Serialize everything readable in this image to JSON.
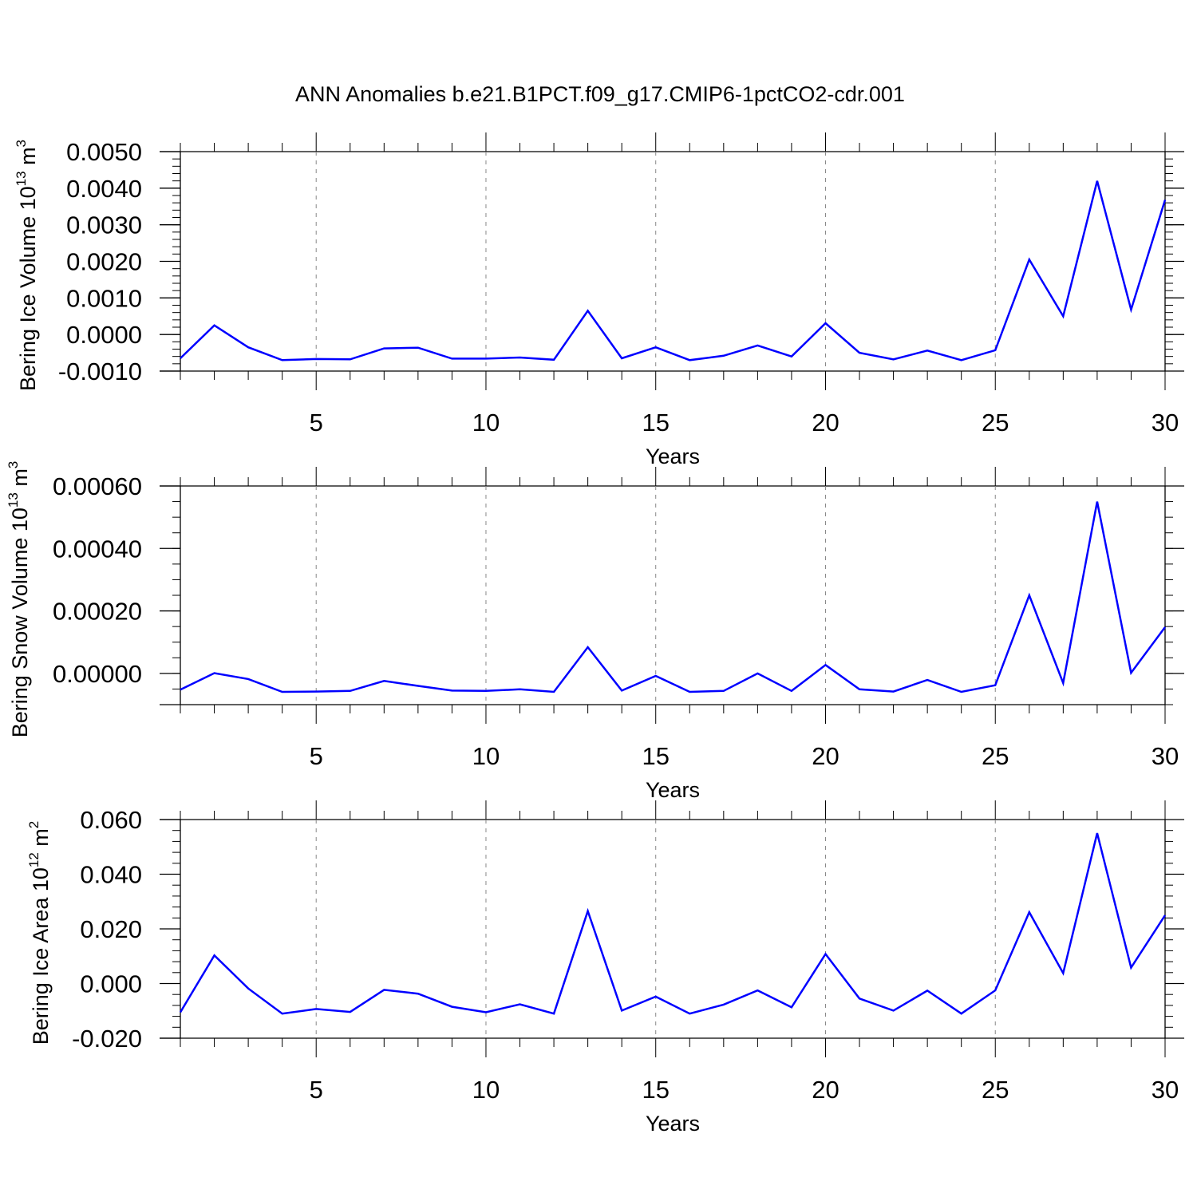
{
  "title": "ANN Anomalies b.e21.B1PCT.f09_g17.CMIP6-1pctCO2-cdr.001",
  "colors": {
    "line": "#0000ff",
    "axis": "#000000",
    "grid": "#888888",
    "background": "#ffffff"
  },
  "chart_data": [
    {
      "type": "line",
      "ylabel": "Bering Ice Volume 10",
      "ylabel_sup": "13",
      "ylabel_unit": " m",
      "ylabel_unit_sup": "3",
      "xlabel": "Years",
      "xlim": [
        1,
        30
      ],
      "ylim": [
        -0.001,
        0.005
      ],
      "x_ticks": [
        5,
        10,
        15,
        20,
        25,
        30
      ],
      "x_tick_labels": [
        "5",
        "10",
        "15",
        "20",
        "25",
        "30"
      ],
      "y_ticks": [
        -0.001,
        0.0,
        0.001,
        0.002,
        0.003,
        0.004,
        0.005
      ],
      "y_tick_labels": [
        "-0.0010",
        "0.0000",
        "0.0010",
        "0.0020",
        "0.0030",
        "0.0040",
        "0.0050"
      ],
      "y_minor_step": 0.0002,
      "grid": "x-dashed",
      "x": [
        1,
        2,
        3,
        4,
        5,
        6,
        7,
        8,
        9,
        10,
        11,
        12,
        13,
        14,
        15,
        16,
        17,
        18,
        19,
        20,
        21,
        22,
        23,
        24,
        25,
        26,
        27,
        28,
        29,
        30
      ],
      "values": [
        -0.00065,
        0.00025,
        -0.00035,
        -0.0007,
        -0.00067,
        -0.00068,
        -0.00038,
        -0.00036,
        -0.00066,
        -0.00066,
        -0.00063,
        -0.00069,
        0.00065,
        -0.00065,
        -0.00035,
        -0.0007,
        -0.00058,
        -0.0003,
        -0.0006,
        0.00031,
        -0.0005,
        -0.00068,
        -0.00044,
        -0.0007,
        -0.00043,
        0.00205,
        0.0005,
        0.0042,
        0.00068,
        0.00368
      ]
    },
    {
      "type": "line",
      "ylabel": "Bering Snow Volume 10",
      "ylabel_sup": "13",
      "ylabel_unit": " m",
      "ylabel_unit_sup": "3",
      "xlabel": "Years",
      "xlim": [
        1,
        30
      ],
      "ylim": [
        -0.0001,
        0.0006
      ],
      "x_ticks": [
        5,
        10,
        15,
        20,
        25,
        30
      ],
      "x_tick_labels": [
        "5",
        "10",
        "15",
        "20",
        "25",
        "30"
      ],
      "y_ticks": [
        0.0,
        0.0002,
        0.0004,
        0.0006
      ],
      "y_tick_labels": [
        "0.00000",
        "0.00020",
        "0.00040",
        "0.00060"
      ],
      "y_minor_step": 5e-05,
      "grid": "x-dashed",
      "x": [
        1,
        2,
        3,
        4,
        5,
        6,
        7,
        8,
        9,
        10,
        11,
        12,
        13,
        14,
        15,
        16,
        17,
        18,
        19,
        20,
        21,
        22,
        23,
        24,
        25,
        26,
        27,
        28,
        29,
        30
      ],
      "values": [
        -5.2e-05,
        1e-06,
        -1.8e-05,
        -5.9e-05,
        -5.8e-05,
        -5.6e-05,
        -2.4e-05,
        -4e-05,
        -5.5e-05,
        -5.6e-05,
        -5.1e-05,
        -5.9e-05,
        8.4e-05,
        -5.5e-05,
        -8e-06,
        -5.9e-05,
        -5.6e-05,
        0.0,
        -5.6e-05,
        2.7e-05,
        -5.1e-05,
        -5.8e-05,
        -2.1e-05,
        -5.9e-05,
        -3.8e-05,
        0.00025,
        -3.1e-05,
        0.00055,
        2e-06,
        0.000148
      ]
    },
    {
      "type": "line",
      "ylabel": "Bering Ice Area 10",
      "ylabel_sup": "12",
      "ylabel_unit": " m",
      "ylabel_unit_sup": "2",
      "xlabel": "Years",
      "xlim": [
        1,
        30
      ],
      "ylim": [
        -0.02,
        0.06
      ],
      "x_ticks": [
        5,
        10,
        15,
        20,
        25,
        30
      ],
      "x_tick_labels": [
        "5",
        "10",
        "15",
        "20",
        "25",
        "30"
      ],
      "y_ticks": [
        -0.02,
        0.0,
        0.02,
        0.04,
        0.06
      ],
      "y_tick_labels": [
        "-0.020",
        "0.000",
        "0.020",
        "0.040",
        "0.060"
      ],
      "y_minor_step": 0.004,
      "grid": "x-dashed",
      "x": [
        1,
        2,
        3,
        4,
        5,
        6,
        7,
        8,
        9,
        10,
        11,
        12,
        13,
        14,
        15,
        16,
        17,
        18,
        19,
        20,
        21,
        22,
        23,
        24,
        25,
        26,
        27,
        28,
        29,
        30
      ],
      "values": [
        -0.0105,
        0.0103,
        -0.0018,
        -0.011,
        -0.0093,
        -0.0104,
        -0.0023,
        -0.0037,
        -0.0085,
        -0.0105,
        -0.0076,
        -0.011,
        0.0265,
        -0.0099,
        -0.0048,
        -0.011,
        -0.0077,
        -0.0025,
        -0.0087,
        0.0108,
        -0.0055,
        -0.0099,
        -0.0026,
        -0.011,
        -0.0025,
        0.0261,
        0.0038,
        0.055,
        0.0058,
        0.025
      ]
    }
  ]
}
